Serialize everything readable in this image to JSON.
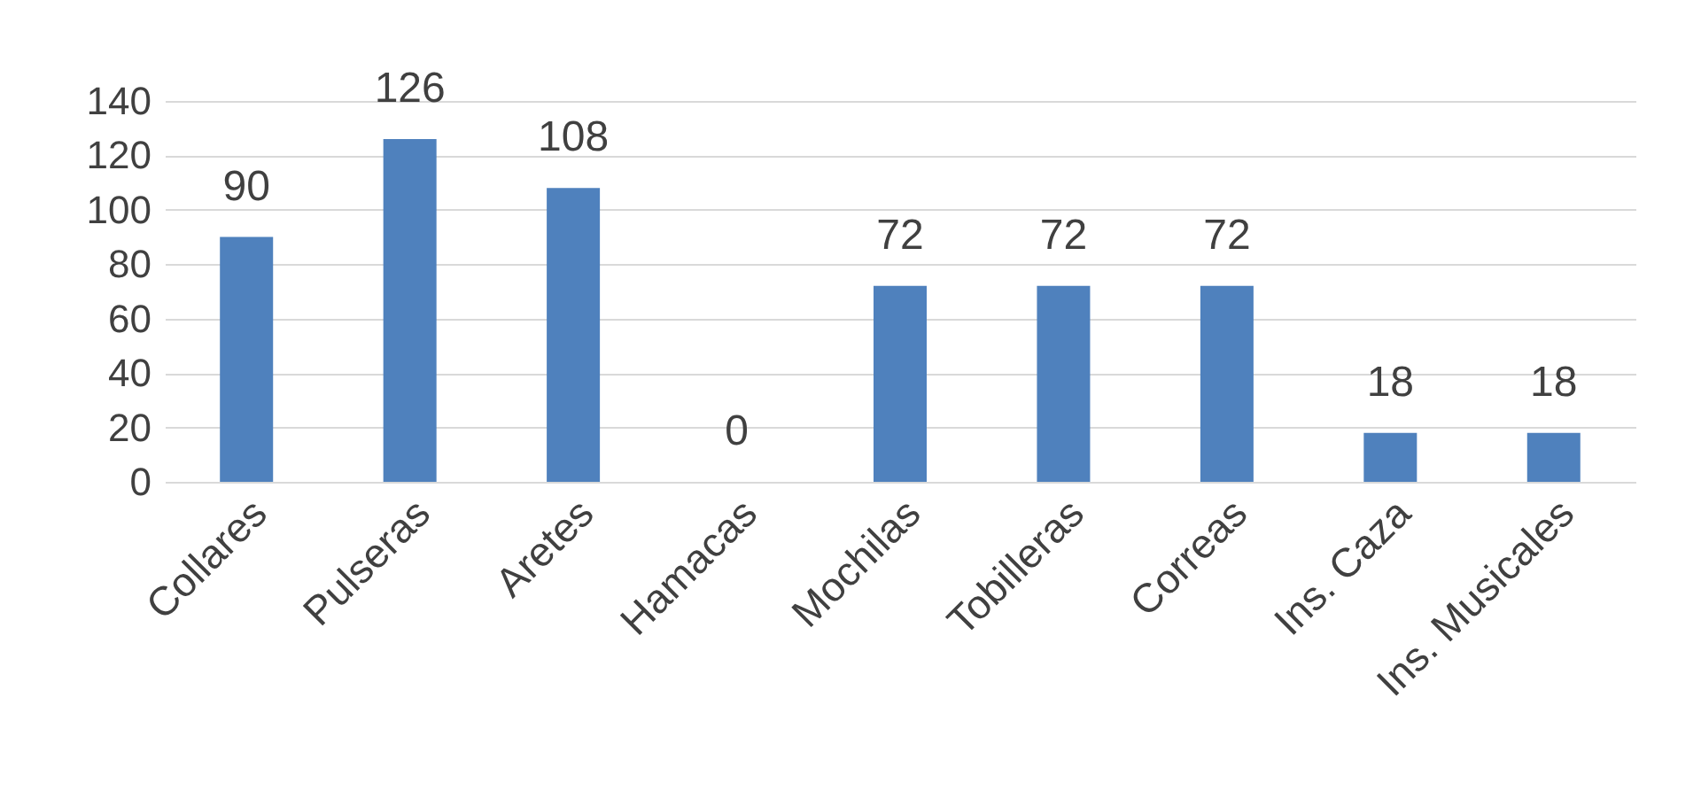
{
  "chart_data": {
    "type": "bar",
    "categories": [
      "Collares",
      "Pulseras",
      "Aretes",
      "Hamacas",
      "Mochilas",
      "Tobilleras",
      "Correas",
      "Ins. Caza",
      "Ins. Musicales"
    ],
    "values": [
      90,
      126,
      108,
      0,
      72,
      72,
      72,
      18,
      18
    ],
    "color": "#4f81bd",
    "ylim": [
      0,
      140
    ],
    "yticks": [
      0,
      20,
      40,
      60,
      80,
      100,
      120,
      140
    ],
    "grid": "y",
    "data_labels": true
  }
}
